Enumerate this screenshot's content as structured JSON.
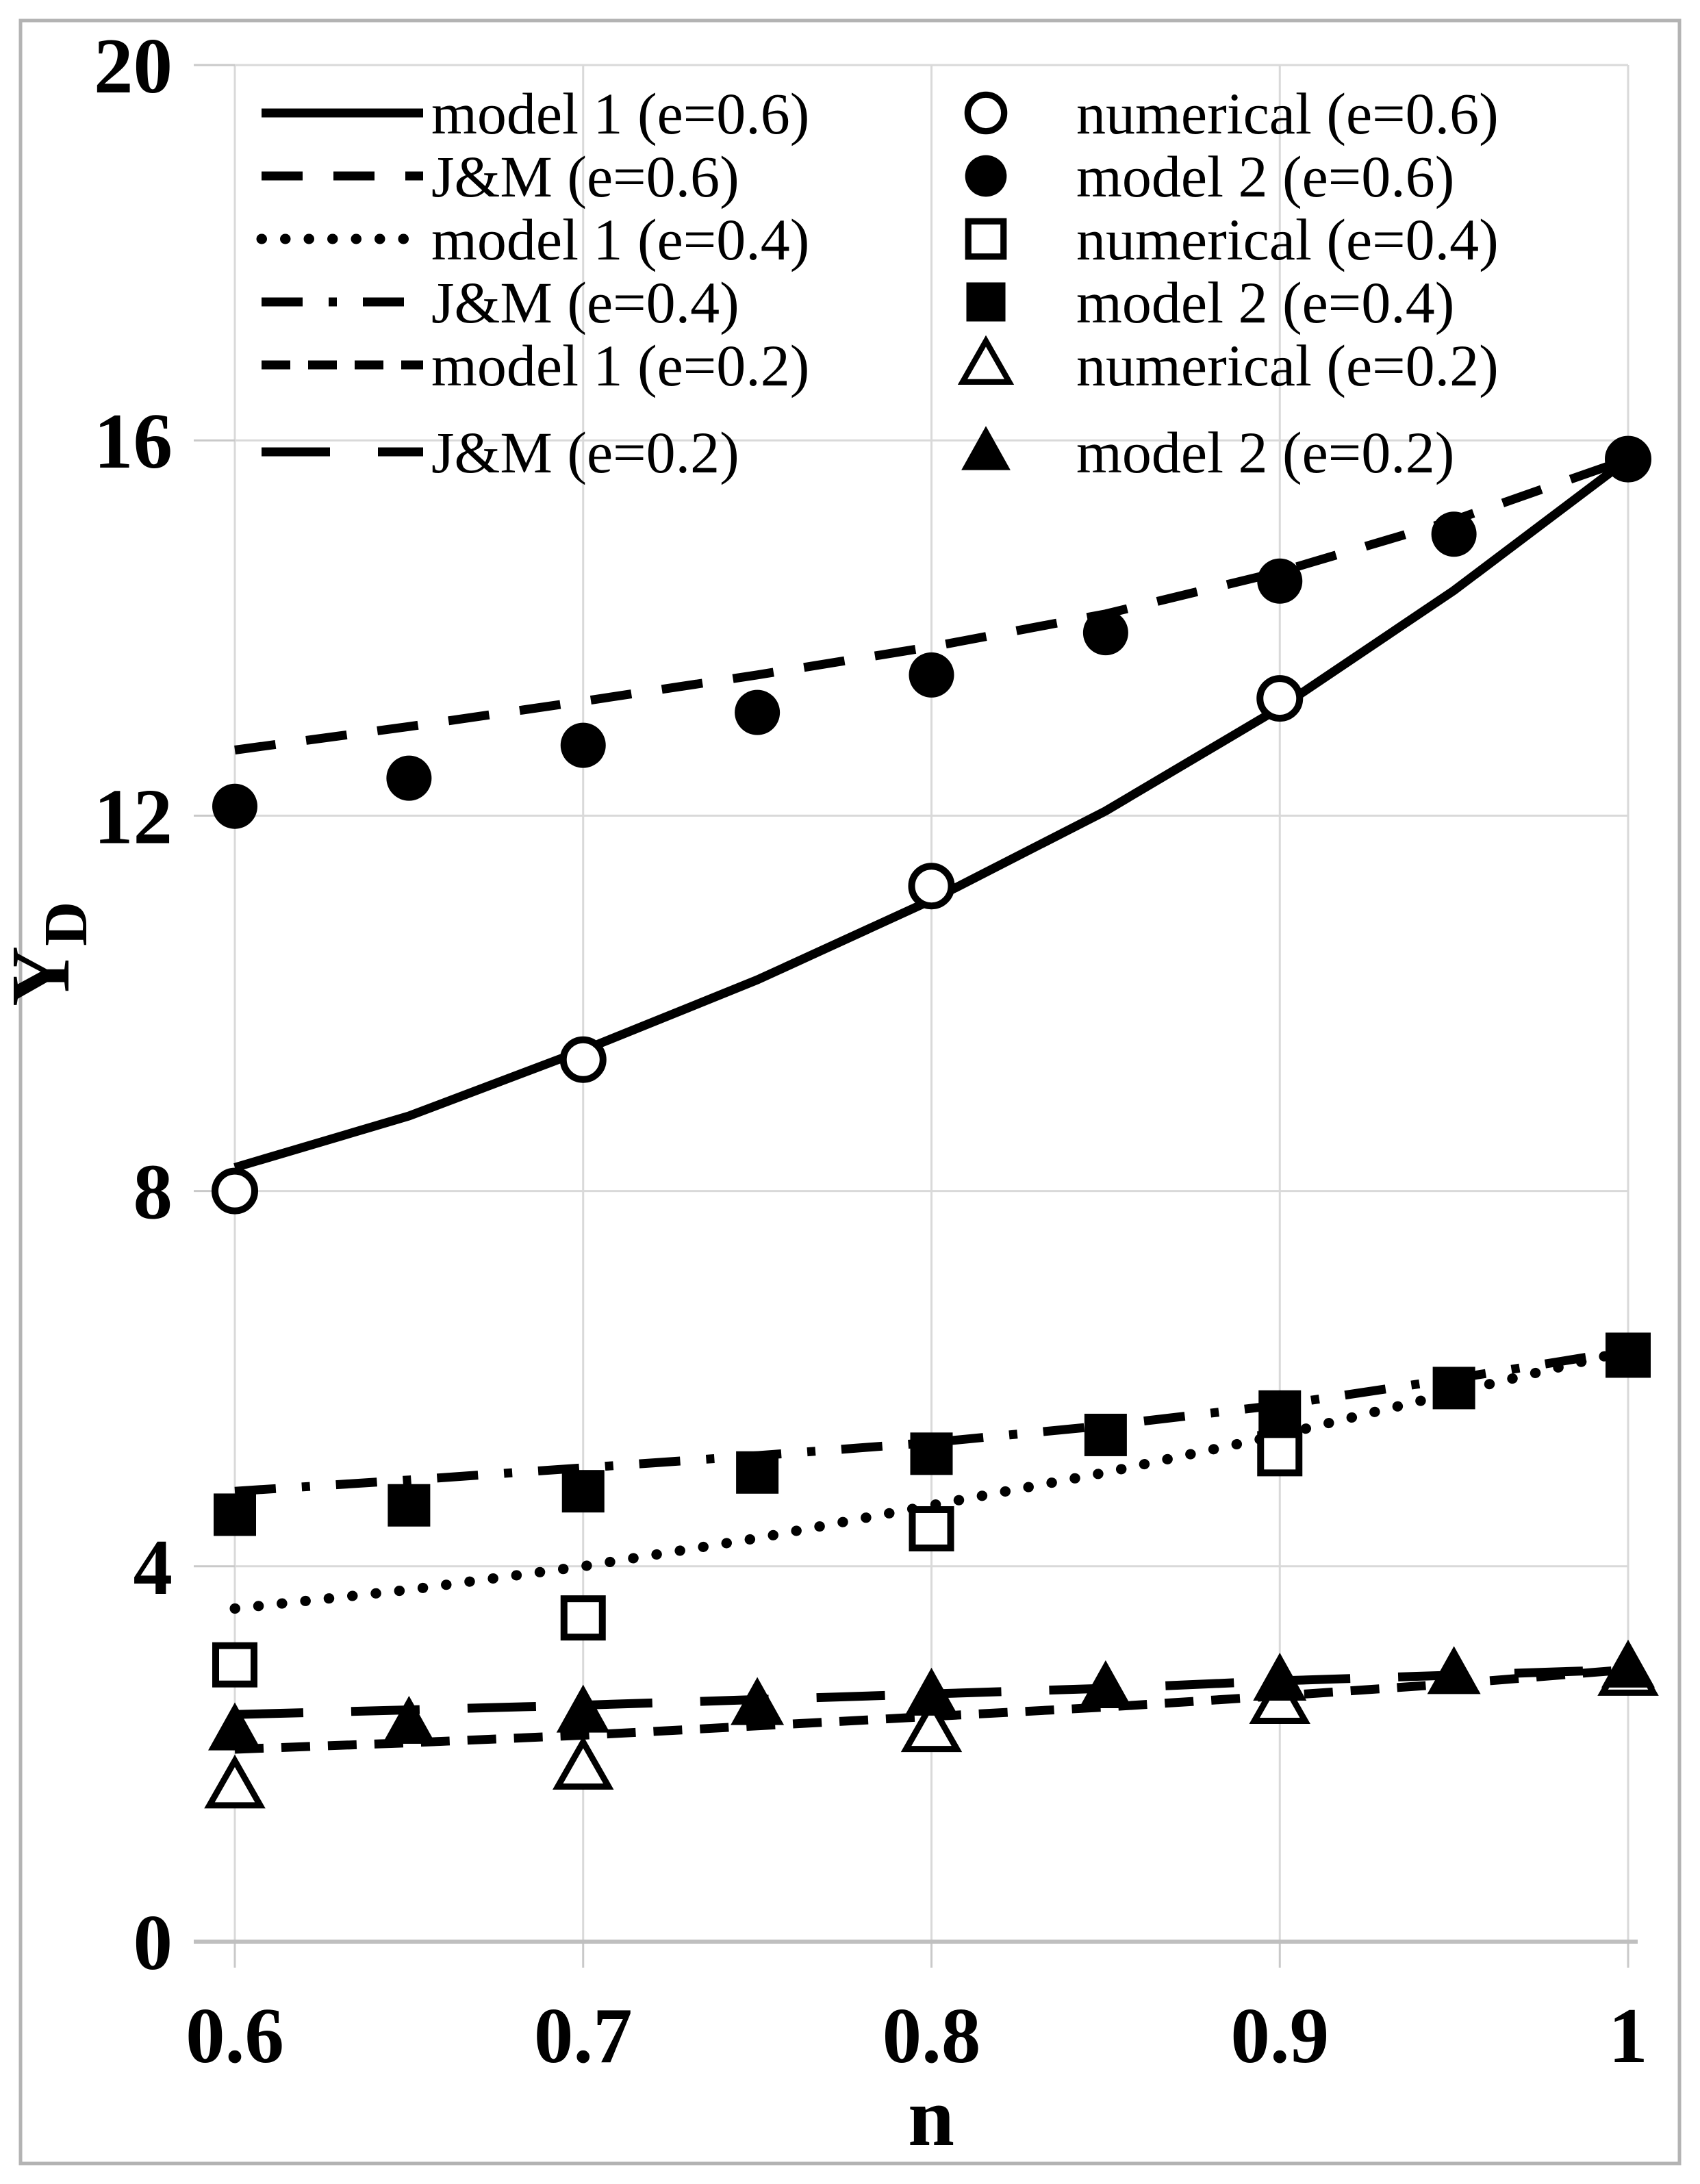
{
  "figure": {
    "kind": "scientific-line-chart",
    "background_color": "#ffffff",
    "border_color": "#b3b3b3",
    "foreground_color": "#000000",
    "gridline_color": "#d9d9d9",
    "axis_color": "#bfbfbf"
  },
  "chart_data": {
    "type": "line",
    "title": "",
    "xlabel": "n",
    "ylabel": "YD",
    "ylabel_main": "Y",
    "ylabel_sub": "D",
    "xlim": [
      0.6,
      1.0
    ],
    "ylim": [
      0,
      20
    ],
    "grid": true,
    "legend_position": "top-inside-two-columns",
    "x_ticks": [
      "0.6",
      "0.7",
      "0.8",
      "0.9",
      "1"
    ],
    "x_tick_values": [
      0.6,
      0.7,
      0.8,
      0.9,
      1.0
    ],
    "y_ticks": [
      "0",
      "4",
      "8",
      "12",
      "16",
      "20"
    ],
    "y_tick_values": [
      0,
      4,
      8,
      12,
      16,
      20
    ],
    "legend": {
      "left_column": [
        {
          "label": "model 1 (e=0.6)",
          "line_style": "solid"
        },
        {
          "label": "J&M (e=0.6)",
          "line_style": "dash"
        },
        {
          "label": "model 1 (e=0.4)",
          "line_style": "dot"
        },
        {
          "label": "J&M (e=0.4)",
          "line_style": "dashdot"
        },
        {
          "label": "model 1 (e=0.2)",
          "line_style": "short-dash"
        },
        {
          "label": "J&M (e=0.2)",
          "line_style": "long-dash"
        }
      ],
      "right_column": [
        {
          "label": "numerical (e=0.6)",
          "marker": "circle-open"
        },
        {
          "label": "model 2 (e=0.6)",
          "marker": "circle-filled"
        },
        {
          "label": "numerical (e=0.4)",
          "marker": "square-open"
        },
        {
          "label": "model 2 (e=0.4)",
          "marker": "square-filled"
        },
        {
          "label": "numerical (e=0.2)",
          "marker": "triangle-open"
        },
        {
          "label": "model 2 (e=0.2)",
          "marker": "triangle-filled"
        }
      ]
    },
    "series": [
      {
        "name": "model 1 (e=0.6)",
        "kind": "line",
        "line_style": "solid",
        "x": [
          0.6,
          0.65,
          0.7,
          0.75,
          0.8,
          0.85,
          0.9,
          0.95,
          1.0
        ],
        "y": [
          8.25,
          8.8,
          9.5,
          10.25,
          11.1,
          12.05,
          13.15,
          14.4,
          15.8
        ]
      },
      {
        "name": "J&M (e=0.6)",
        "kind": "line",
        "line_style": "dash",
        "x": [
          0.6,
          0.65,
          0.7,
          0.75,
          0.8,
          0.85,
          0.9,
          0.95,
          1.0
        ],
        "y": [
          12.7,
          12.95,
          13.22,
          13.5,
          13.8,
          14.15,
          14.6,
          15.15,
          15.8
        ]
      },
      {
        "name": "model 1 (e=0.4)",
        "kind": "line",
        "line_style": "dot",
        "x": [
          0.6,
          0.65,
          0.7,
          0.75,
          0.8,
          0.85,
          0.9,
          0.95,
          1.0
        ],
        "y": [
          3.55,
          3.75,
          4.0,
          4.3,
          4.65,
          5.0,
          5.4,
          5.85,
          6.3
        ]
      },
      {
        "name": "J&M (e=0.4)",
        "kind": "line",
        "line_style": "dashdot",
        "x": [
          0.6,
          0.65,
          0.7,
          0.75,
          0.8,
          0.85,
          0.9,
          0.95,
          1.0
        ],
        "y": [
          4.8,
          4.92,
          5.05,
          5.18,
          5.32,
          5.5,
          5.72,
          6.0,
          6.3
        ]
      },
      {
        "name": "model 1 (e=0.2)",
        "kind": "line",
        "line_style": "short-dash",
        "x": [
          0.6,
          0.65,
          0.7,
          0.75,
          0.8,
          0.85,
          0.9,
          0.95,
          1.0
        ],
        "y": [
          2.05,
          2.12,
          2.2,
          2.3,
          2.4,
          2.5,
          2.62,
          2.75,
          2.9
        ]
      },
      {
        "name": "J&M (e=0.2)",
        "kind": "line",
        "line_style": "long-dash",
        "x": [
          0.6,
          0.65,
          0.7,
          0.75,
          0.8,
          0.85,
          0.9,
          0.95,
          1.0
        ],
        "y": [
          2.42,
          2.47,
          2.52,
          2.58,
          2.64,
          2.7,
          2.78,
          2.84,
          2.9
        ]
      },
      {
        "name": "numerical (e=0.6)",
        "kind": "marker",
        "marker": "circle-open",
        "x": [
          0.6,
          0.7,
          0.8,
          0.9,
          1.0
        ],
        "y": [
          8.0,
          9.4,
          11.25,
          13.25,
          15.8
        ]
      },
      {
        "name": "model 2 (e=0.6)",
        "kind": "marker",
        "marker": "circle-filled",
        "x": [
          0.6,
          0.65,
          0.7,
          0.75,
          0.8,
          0.85,
          0.9,
          0.95,
          1.0
        ],
        "y": [
          12.1,
          12.4,
          12.75,
          13.1,
          13.5,
          13.95,
          14.5,
          15.0,
          15.8
        ]
      },
      {
        "name": "numerical (e=0.4)",
        "kind": "marker",
        "marker": "square-open",
        "x": [
          0.6,
          0.7,
          0.8,
          0.9,
          1.0
        ],
        "y": [
          2.95,
          3.45,
          4.4,
          5.2,
          6.25
        ]
      },
      {
        "name": "model 2 (e=0.4)",
        "kind": "marker",
        "marker": "square-filled",
        "x": [
          0.6,
          0.65,
          0.7,
          0.75,
          0.8,
          0.85,
          0.9,
          0.95,
          1.0
        ],
        "y": [
          4.55,
          4.65,
          4.8,
          5.0,
          5.2,
          5.4,
          5.65,
          5.9,
          6.25
        ]
      },
      {
        "name": "numerical (e=0.2)",
        "kind": "marker",
        "marker": "triangle-open",
        "x": [
          0.6,
          0.7,
          0.8,
          0.9,
          1.0
        ],
        "y": [
          1.65,
          1.85,
          2.25,
          2.55,
          2.85
        ]
      },
      {
        "name": "model 2 (e=0.2)",
        "kind": "marker",
        "marker": "triangle-filled",
        "x": [
          0.6,
          0.65,
          0.7,
          0.75,
          0.8,
          0.85,
          0.9,
          0.95,
          1.0
        ],
        "y": [
          2.25,
          2.32,
          2.44,
          2.52,
          2.62,
          2.7,
          2.78,
          2.85,
          2.92
        ]
      }
    ]
  }
}
